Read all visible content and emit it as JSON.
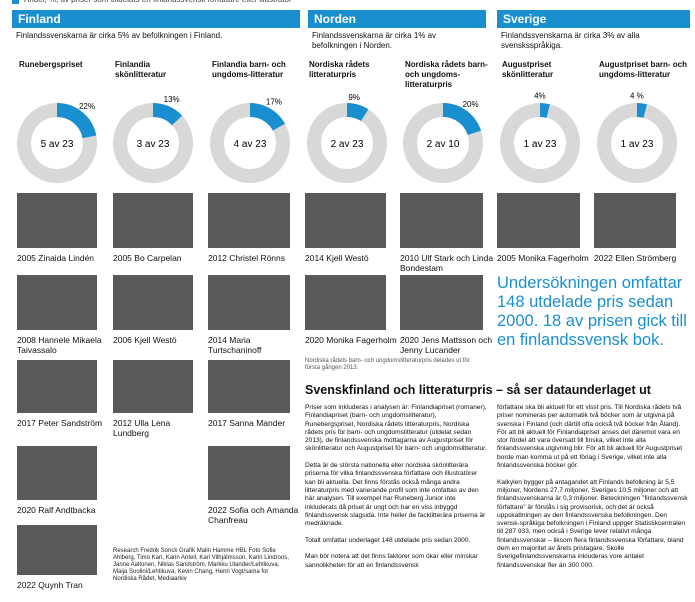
{
  "legend": "Andel, %, av priser som tilldelats en finlandssvensk författare eller illustratör",
  "sections": [
    {
      "title": "Finland",
      "intro": "Finlandssvenskarna är cirka 5% av befolkningen i Finland."
    },
    {
      "title": "Norden",
      "intro": "Finlandssvenskarna är cirka 1% av befolkningen i Norden."
    },
    {
      "title": "Sverige",
      "intro": "Finlandssvenskarna är cirka 3% av alla svensksspråkiga."
    }
  ],
  "chart_data": [
    {
      "type": "donut",
      "title": "Runebergspriset",
      "values": [
        22
      ],
      "value_labels": [
        "22%"
      ],
      "center_label": "5 av 23",
      "color": "#1a8fd0"
    },
    {
      "type": "donut",
      "title": "Finlandia skönlitteratur",
      "values": [
        13
      ],
      "value_labels": [
        "13%"
      ],
      "center_label": "3 av 23",
      "color": "#1a8fd0"
    },
    {
      "type": "donut",
      "title": "Finlandia barn- och ungdoms-litteratur",
      "values": [
        17
      ],
      "value_labels": [
        "17%"
      ],
      "center_label": "4 av 23",
      "color": "#1a8fd0"
    },
    {
      "type": "donut",
      "title": "Nordiska rådets litteraturpris",
      "values": [
        9
      ],
      "value_labels": [
        "9%"
      ],
      "center_label": "2 av 23",
      "color": "#1a8fd0"
    },
    {
      "type": "donut",
      "title": "Nordiska rådets barn- och ungdoms-litteraturpris",
      "values": [
        20
      ],
      "value_labels": [
        "20%"
      ],
      "center_label": "2 av 10",
      "color": "#1a8fd0"
    },
    {
      "type": "donut",
      "title": "Augustpriset skönlitteratur",
      "values": [
        4
      ],
      "value_labels": [
        "4%"
      ],
      "center_label": "1 av 23",
      "color": "#1a8fd0"
    },
    {
      "type": "donut",
      "title": "Augustpriset barn- och ungdoms-litteratur",
      "values": [
        4
      ],
      "value_labels": [
        "4 %"
      ],
      "center_label": "1 av 23",
      "color": "#1a8fd0"
    }
  ],
  "photos": [
    [
      "2005 Zinaida Lindén",
      "2008 Hannele Mikaela Taivassalo",
      "2017 Peter Sandström",
      "2020 Ralf Andtbacka",
      "2022 Quynh Tran"
    ],
    [
      "2005 Bo Carpelan",
      "2006 Kjell Westö",
      "2012 Ulla Lena Lundberg"
    ],
    [
      "2012 Christel Rönns",
      "2014 Maria Turtschaninoff",
      "2017 Sanna Mander",
      "2022 Sofia och Amanda Chanfreau"
    ],
    [
      "2014 Kjell Westö",
      "2020 Monika Fagerholm"
    ],
    [
      "2010 Ulf Stark och Linda Bondestam",
      "2020 Jens Mattsson och Jenny Lucander"
    ],
    [
      "2005 Monika Fagerholm"
    ],
    [
      "2022 Ellen Strömberg"
    ]
  ],
  "photo_note": "Nordiska rådets barn- och ungdomslitteraturpris delades ut för första gången 2013.",
  "credits": "Research Fredrik Sonck Grafik Malin Hamme HBL Foto Sofie Ahlberg, Timo Kari, Karin Antell, Karl Vilhjálmsson, Karin Lindroos, Janne Aaltonen, Niklas Sandström, Markku Ulander/Lehtikuva, Maija Suolini/Lehtikuva, Kevin Chang, Henri Vogt/sama for Nordiska Rådet, Mediaarkiv",
  "highlight": "Undersökningen omfattar 148 utdelade pris sedan 2000. 18 av prisen gick till en finlandssvensk bok.",
  "article": {
    "title": "Svenskfinland och litteraturpris – så ser dataunderlaget ut",
    "columns": [
      "Priser som inkluderas i analysen är: Finlandiapriset (romaner), Finlandiapriset (barn- och ungdomslitteratur), Runebergspriset, Nordiska rådets litteraturpris, Nordiska rådets pris för barn- och ungdomslitteratur (utdelat sedan 2013), de finlandssvenska mottagarna av Augustpriset för skönlitteratur och Augustpriset för barn- och ungdomslitteratur.\n\nDetta är de största nationella eller nordiska skönlitterära priserna för vilka finlandssvenska författare och illustratörer kan bli aktuella. Det finns förstås också många andra litteraturpris med varierande profil som inte omfattas av den här analysen. Till exempel har Runeberg Junior inte inkluderats då priset är ungt och har en viss inbyggd finlandssvensk slagsida. Inte heller de facklitterära priserna är medräknade.\n\nTotalt omfattar underlaget 148 utdelade pris sedan 2000.\n\nMan bör notera att det finns faktorer som ökar eller minskar sannolikheten för att en finlandssvensk",
      "författare ska bli aktuell för ett visst pris. Till Nordiska rådets två priser nomineras per automatik två böcker som är utgivna på svenska i Finland (och därtill ofta också två böcker från Åland). För att bli aktuell för Finlandiapriset anses det däremot vara en stor fördel att vara översatt till finska, vilket inte alla finlandssvenska utgivning blir. För att bli aktuell för Augustpriset borde man komma ut på ett förlag i Sverige, vilket inte alla finlandssvenska böcker gör.\n\nKalkylen bygger på antagandet att Finlands befolkning är 5,5 miljoner, Nordens 27,7 miljoner, Sveriges 10,5 miljoner och att finlandssvenskarna är 0,3 miljoner. Beteckningen ”finlandssvensk författare” är förstås i sig provisorisk, och det är också uppskattningen av den finlandssvenska befolkningen. Den svensk-språkiga befolkningen i Finland uppger Statistikcentralen till 287 933, men också i Sverige lever relativt många finlandssvenskar – liksom flera finlandssvenska författare, bland dem en majoritet av årets pristagare. Skolle Sverigefinlandssvenskarna inkluderas vore antalet finlandssvenskar fler än 300 000."
    ]
  }
}
